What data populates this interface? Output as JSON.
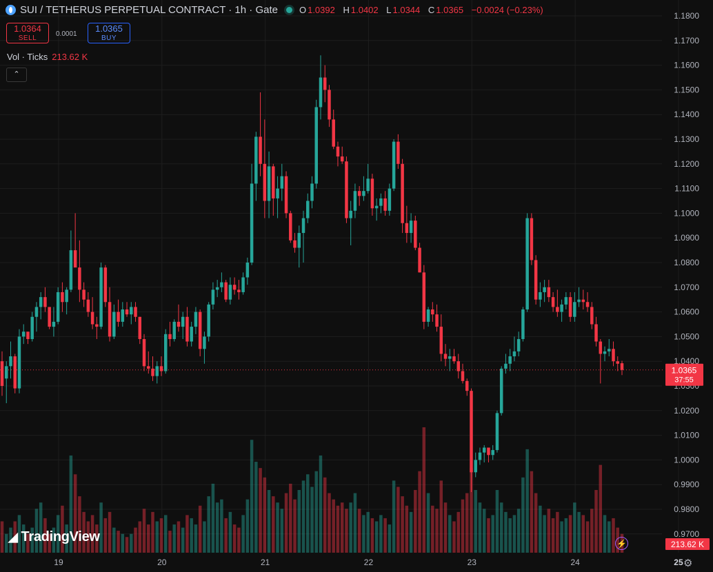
{
  "header": {
    "symbol_title": "SUI / TETHERUS PERPETUAL CONTRACT · 1h · Gate",
    "ohlc": {
      "o_key": "O",
      "o_val": "1.0392",
      "h_key": "H",
      "h_val": "1.0402",
      "l_key": "L",
      "l_val": "1.0344",
      "c_key": "C",
      "c_val": "1.0365",
      "change": "−0.0024 (−0.23%)"
    }
  },
  "trade": {
    "sell_price": "1.0364",
    "sell_label": "SELL",
    "spread": "0.0001",
    "buy_price": "1.0365",
    "buy_label": "BUY"
  },
  "volume_legend": {
    "label": "Vol · Ticks",
    "value": "213.62 K"
  },
  "price_tag": {
    "price": "1.0365",
    "countdown": "37:55"
  },
  "volume_tag": "213.62 K",
  "branding": {
    "logo_text": "TradingView"
  },
  "colors": {
    "up": "#26a69a",
    "down": "#f23645",
    "background": "#0f0f0f",
    "grid": "#1e1e1e"
  },
  "icons": {
    "collapse": "chevron-up-icon",
    "bolt": "lightning-icon",
    "settings": "gear-icon"
  },
  "chart_data": {
    "type": "candlestick",
    "interval": "1h",
    "y_ticks": [
      "1.1800",
      "1.1700",
      "1.1600",
      "1.1500",
      "1.1400",
      "1.1300",
      "1.1200",
      "1.1100",
      "1.1000",
      "1.0900",
      "1.0800",
      "1.0700",
      "1.0600",
      "1.0500",
      "1.0400",
      "1.0300",
      "1.0200",
      "1.0100",
      "1.0000",
      "0.9900",
      "0.9800",
      "0.9700"
    ],
    "ylim": [
      0.965,
      1.185
    ],
    "x_labels": [
      "19",
      "20",
      "21",
      "22",
      "23",
      "24",
      "25"
    ],
    "current_price": 1.0365,
    "candles": [
      {
        "o": 1.04,
        "h": 1.044,
        "l": 1.026,
        "c": 1.03,
        "v": 10
      },
      {
        "o": 1.033,
        "h": 1.04,
        "l": 1.023,
        "c": 1.038,
        "v": 6
      },
      {
        "o": 1.038,
        "h": 1.048,
        "l": 1.033,
        "c": 1.042,
        "v": 8
      },
      {
        "o": 1.042,
        "h": 1.043,
        "l": 1.027,
        "c": 1.029,
        "v": 10
      },
      {
        "o": 1.029,
        "h": 1.053,
        "l": 1.027,
        "c": 1.05,
        "v": 12
      },
      {
        "o": 1.05,
        "h": 1.055,
        "l": 1.047,
        "c": 1.052,
        "v": 9
      },
      {
        "o": 1.052,
        "h": 1.051,
        "l": 1.047,
        "c": 1.049,
        "v": 6
      },
      {
        "o": 1.049,
        "h": 1.06,
        "l": 1.048,
        "c": 1.058,
        "v": 8
      },
      {
        "o": 1.058,
        "h": 1.064,
        "l": 1.052,
        "c": 1.062,
        "v": 14
      },
      {
        "o": 1.062,
        "h": 1.068,
        "l": 1.057,
        "c": 1.066,
        "v": 16
      },
      {
        "o": 1.066,
        "h": 1.07,
        "l": 1.06,
        "c": 1.062,
        "v": 11
      },
      {
        "o": 1.062,
        "h": 1.061,
        "l": 1.053,
        "c": 1.054,
        "v": 6
      },
      {
        "o": 1.054,
        "h": 1.062,
        "l": 1.05,
        "c": 1.056,
        "v": 8
      },
      {
        "o": 1.056,
        "h": 1.07,
        "l": 1.055,
        "c": 1.068,
        "v": 12
      },
      {
        "o": 1.068,
        "h": 1.072,
        "l": 1.06,
        "c": 1.064,
        "v": 15
      },
      {
        "o": 1.064,
        "h": 1.07,
        "l": 1.059,
        "c": 1.069,
        "v": 9
      },
      {
        "o": 1.069,
        "h": 1.093,
        "l": 1.068,
        "c": 1.085,
        "v": 31
      },
      {
        "o": 1.085,
        "h": 1.1,
        "l": 1.08,
        "c": 1.078,
        "v": 25
      },
      {
        "o": 1.078,
        "h": 1.089,
        "l": 1.064,
        "c": 1.069,
        "v": 18
      },
      {
        "o": 1.069,
        "h": 1.072,
        "l": 1.062,
        "c": 1.065,
        "v": 13
      },
      {
        "o": 1.065,
        "h": 1.068,
        "l": 1.058,
        "c": 1.06,
        "v": 10
      },
      {
        "o": 1.06,
        "h": 1.066,
        "l": 1.053,
        "c": 1.055,
        "v": 12
      },
      {
        "o": 1.055,
        "h": 1.058,
        "l": 1.049,
        "c": 1.054,
        "v": 9
      },
      {
        "o": 1.054,
        "h": 1.08,
        "l": 1.053,
        "c": 1.078,
        "v": 16
      },
      {
        "o": 1.078,
        "h": 1.079,
        "l": 1.062,
        "c": 1.064,
        "v": 11
      },
      {
        "o": 1.064,
        "h": 1.07,
        "l": 1.048,
        "c": 1.05,
        "v": 13
      },
      {
        "o": 1.05,
        "h": 1.063,
        "l": 1.049,
        "c": 1.06,
        "v": 8
      },
      {
        "o": 1.06,
        "h": 1.065,
        "l": 1.054,
        "c": 1.056,
        "v": 7
      },
      {
        "o": 1.056,
        "h": 1.064,
        "l": 1.054,
        "c": 1.061,
        "v": 6
      },
      {
        "o": 1.061,
        "h": 1.064,
        "l": 1.058,
        "c": 1.059,
        "v": 5
      },
      {
        "o": 1.059,
        "h": 1.064,
        "l": 1.055,
        "c": 1.062,
        "v": 6
      },
      {
        "o": 1.062,
        "h": 1.064,
        "l": 1.056,
        "c": 1.058,
        "v": 8
      },
      {
        "o": 1.058,
        "h": 1.058,
        "l": 1.047,
        "c": 1.049,
        "v": 10
      },
      {
        "o": 1.049,
        "h": 1.051,
        "l": 1.036,
        "c": 1.038,
        "v": 14
      },
      {
        "o": 1.038,
        "h": 1.044,
        "l": 1.035,
        "c": 1.037,
        "v": 9
      },
      {
        "o": 1.037,
        "h": 1.042,
        "l": 1.032,
        "c": 1.034,
        "v": 13
      },
      {
        "o": 1.034,
        "h": 1.04,
        "l": 1.031,
        "c": 1.038,
        "v": 10
      },
      {
        "o": 1.038,
        "h": 1.042,
        "l": 1.034,
        "c": 1.036,
        "v": 11
      },
      {
        "o": 1.036,
        "h": 1.053,
        "l": 1.035,
        "c": 1.051,
        "v": 12
      },
      {
        "o": 1.051,
        "h": 1.056,
        "l": 1.046,
        "c": 1.049,
        "v": 7
      },
      {
        "o": 1.049,
        "h": 1.057,
        "l": 1.048,
        "c": 1.056,
        "v": 9
      },
      {
        "o": 1.056,
        "h": 1.063,
        "l": 1.052,
        "c": 1.054,
        "v": 10
      },
      {
        "o": 1.054,
        "h": 1.06,
        "l": 1.049,
        "c": 1.058,
        "v": 8
      },
      {
        "o": 1.058,
        "h": 1.062,
        "l": 1.046,
        "c": 1.048,
        "v": 12
      },
      {
        "o": 1.048,
        "h": 1.056,
        "l": 1.046,
        "c": 1.054,
        "v": 11
      },
      {
        "o": 1.054,
        "h": 1.062,
        "l": 1.051,
        "c": 1.06,
        "v": 9
      },
      {
        "o": 1.06,
        "h": 1.061,
        "l": 1.042,
        "c": 1.045,
        "v": 15
      },
      {
        "o": 1.045,
        "h": 1.052,
        "l": 1.039,
        "c": 1.05,
        "v": 10
      },
      {
        "o": 1.05,
        "h": 1.064,
        "l": 1.048,
        "c": 1.063,
        "v": 18
      },
      {
        "o": 1.063,
        "h": 1.072,
        "l": 1.061,
        "c": 1.069,
        "v": 22
      },
      {
        "o": 1.069,
        "h": 1.073,
        "l": 1.066,
        "c": 1.07,
        "v": 16
      },
      {
        "o": 1.07,
        "h": 1.076,
        "l": 1.068,
        "c": 1.072,
        "v": 17
      },
      {
        "o": 1.072,
        "h": 1.073,
        "l": 1.064,
        "c": 1.065,
        "v": 11
      },
      {
        "o": 1.065,
        "h": 1.074,
        "l": 1.063,
        "c": 1.071,
        "v": 13
      },
      {
        "o": 1.071,
        "h": 1.074,
        "l": 1.067,
        "c": 1.069,
        "v": 9
      },
      {
        "o": 1.069,
        "h": 1.073,
        "l": 1.065,
        "c": 1.068,
        "v": 8
      },
      {
        "o": 1.068,
        "h": 1.076,
        "l": 1.067,
        "c": 1.074,
        "v": 12
      },
      {
        "o": 1.074,
        "h": 1.082,
        "l": 1.071,
        "c": 1.08,
        "v": 17
      },
      {
        "o": 1.08,
        "h": 1.12,
        "l": 1.079,
        "c": 1.112,
        "v": 36
      },
      {
        "o": 1.112,
        "h": 1.133,
        "l": 1.105,
        "c": 1.131,
        "v": 29
      },
      {
        "o": 1.131,
        "h": 1.149,
        "l": 1.115,
        "c": 1.12,
        "v": 27
      },
      {
        "o": 1.12,
        "h": 1.138,
        "l": 1.098,
        "c": 1.105,
        "v": 24
      },
      {
        "o": 1.105,
        "h": 1.125,
        "l": 1.098,
        "c": 1.119,
        "v": 20
      },
      {
        "o": 1.119,
        "h": 1.12,
        "l": 1.099,
        "c": 1.106,
        "v": 18
      },
      {
        "o": 1.106,
        "h": 1.115,
        "l": 1.098,
        "c": 1.11,
        "v": 16
      },
      {
        "o": 1.11,
        "h": 1.12,
        "l": 1.105,
        "c": 1.115,
        "v": 14
      },
      {
        "o": 1.115,
        "h": 1.117,
        "l": 1.098,
        "c": 1.1,
        "v": 19
      },
      {
        "o": 1.1,
        "h": 1.101,
        "l": 1.088,
        "c": 1.089,
        "v": 22
      },
      {
        "o": 1.089,
        "h": 1.092,
        "l": 1.084,
        "c": 1.086,
        "v": 17
      },
      {
        "o": 1.086,
        "h": 1.095,
        "l": 1.078,
        "c": 1.092,
        "v": 20
      },
      {
        "o": 1.092,
        "h": 1.101,
        "l": 1.08,
        "c": 1.098,
        "v": 23
      },
      {
        "o": 1.098,
        "h": 1.108,
        "l": 1.096,
        "c": 1.105,
        "v": 25
      },
      {
        "o": 1.105,
        "h": 1.115,
        "l": 1.102,
        "c": 1.112,
        "v": 21
      },
      {
        "o": 1.112,
        "h": 1.146,
        "l": 1.11,
        "c": 1.143,
        "v": 26
      },
      {
        "o": 1.143,
        "h": 1.164,
        "l": 1.138,
        "c": 1.155,
        "v": 31
      },
      {
        "o": 1.155,
        "h": 1.16,
        "l": 1.145,
        "c": 1.15,
        "v": 24
      },
      {
        "o": 1.15,
        "h": 1.152,
        "l": 1.135,
        "c": 1.138,
        "v": 19
      },
      {
        "o": 1.138,
        "h": 1.142,
        "l": 1.126,
        "c": 1.127,
        "v": 17
      },
      {
        "o": 1.127,
        "h": 1.129,
        "l": 1.119,
        "c": 1.123,
        "v": 15
      },
      {
        "o": 1.123,
        "h": 1.127,
        "l": 1.12,
        "c": 1.121,
        "v": 16
      },
      {
        "o": 1.121,
        "h": 1.123,
        "l": 1.096,
        "c": 1.098,
        "v": 14
      },
      {
        "o": 1.098,
        "h": 1.105,
        "l": 1.087,
        "c": 1.101,
        "v": 16
      },
      {
        "o": 1.101,
        "h": 1.112,
        "l": 1.098,
        "c": 1.109,
        "v": 19
      },
      {
        "o": 1.109,
        "h": 1.111,
        "l": 1.103,
        "c": 1.107,
        "v": 14
      },
      {
        "o": 1.107,
        "h": 1.115,
        "l": 1.105,
        "c": 1.109,
        "v": 12
      },
      {
        "o": 1.109,
        "h": 1.12,
        "l": 1.108,
        "c": 1.114,
        "v": 13
      },
      {
        "o": 1.114,
        "h": 1.116,
        "l": 1.099,
        "c": 1.102,
        "v": 11
      },
      {
        "o": 1.102,
        "h": 1.106,
        "l": 1.097,
        "c": 1.103,
        "v": 10
      },
      {
        "o": 1.103,
        "h": 1.108,
        "l": 1.1,
        "c": 1.106,
        "v": 12
      },
      {
        "o": 1.106,
        "h": 1.109,
        "l": 1.099,
        "c": 1.101,
        "v": 11
      },
      {
        "o": 1.101,
        "h": 1.112,
        "l": 1.099,
        "c": 1.11,
        "v": 9
      },
      {
        "o": 1.11,
        "h": 1.13,
        "l": 1.109,
        "c": 1.129,
        "v": 23
      },
      {
        "o": 1.129,
        "h": 1.132,
        "l": 1.118,
        "c": 1.12,
        "v": 21
      },
      {
        "o": 1.12,
        "h": 1.122,
        "l": 1.092,
        "c": 1.096,
        "v": 18
      },
      {
        "o": 1.096,
        "h": 1.103,
        "l": 1.088,
        "c": 1.092,
        "v": 15
      },
      {
        "o": 1.092,
        "h": 1.1,
        "l": 1.088,
        "c": 1.097,
        "v": 13
      },
      {
        "o": 1.097,
        "h": 1.099,
        "l": 1.085,
        "c": 1.086,
        "v": 20
      },
      {
        "o": 1.086,
        "h": 1.088,
        "l": 1.076,
        "c": 1.076,
        "v": 26
      },
      {
        "o": 1.076,
        "h": 1.079,
        "l": 1.053,
        "c": 1.056,
        "v": 40
      },
      {
        "o": 1.056,
        "h": 1.062,
        "l": 1.054,
        "c": 1.061,
        "v": 19
      },
      {
        "o": 1.061,
        "h": 1.064,
        "l": 1.056,
        "c": 1.059,
        "v": 15
      },
      {
        "o": 1.059,
        "h": 1.063,
        "l": 1.052,
        "c": 1.054,
        "v": 14
      },
      {
        "o": 1.054,
        "h": 1.059,
        "l": 1.04,
        "c": 1.043,
        "v": 23
      },
      {
        "o": 1.043,
        "h": 1.047,
        "l": 1.038,
        "c": 1.041,
        "v": 16
      },
      {
        "o": 1.041,
        "h": 1.045,
        "l": 1.036,
        "c": 1.042,
        "v": 12
      },
      {
        "o": 1.042,
        "h": 1.045,
        "l": 1.039,
        "c": 1.04,
        "v": 10
      },
      {
        "o": 1.04,
        "h": 1.043,
        "l": 1.033,
        "c": 1.036,
        "v": 13
      },
      {
        "o": 1.036,
        "h": 1.039,
        "l": 1.031,
        "c": 1.032,
        "v": 17
      },
      {
        "o": 1.032,
        "h": 1.033,
        "l": 1.026,
        "c": 1.028,
        "v": 19
      },
      {
        "o": 1.028,
        "h": 1.029,
        "l": 0.987,
        "c": 0.995,
        "v": 27
      },
      {
        "o": 0.995,
        "h": 1.003,
        "l": 0.993,
        "c": 1.0,
        "v": 20
      },
      {
        "o": 1.0,
        "h": 1.005,
        "l": 0.998,
        "c": 1.003,
        "v": 16
      },
      {
        "o": 1.003,
        "h": 1.006,
        "l": 0.999,
        "c": 1.005,
        "v": 14
      },
      {
        "o": 1.005,
        "h": 1.004,
        "l": 0.999,
        "c": 1.002,
        "v": 11
      },
      {
        "o": 1.002,
        "h": 1.006,
        "l": 1.0,
        "c": 1.004,
        "v": 12
      },
      {
        "o": 1.004,
        "h": 1.02,
        "l": 1.003,
        "c": 1.019,
        "v": 20
      },
      {
        "o": 1.019,
        "h": 1.038,
        "l": 1.018,
        "c": 1.037,
        "v": 16
      },
      {
        "o": 1.037,
        "h": 1.043,
        "l": 1.035,
        "c": 1.039,
        "v": 13
      },
      {
        "o": 1.039,
        "h": 1.045,
        "l": 1.036,
        "c": 1.042,
        "v": 11
      },
      {
        "o": 1.042,
        "h": 1.05,
        "l": 1.04,
        "c": 1.044,
        "v": 12
      },
      {
        "o": 1.044,
        "h": 1.052,
        "l": 1.042,
        "c": 1.049,
        "v": 14
      },
      {
        "o": 1.049,
        "h": 1.062,
        "l": 1.048,
        "c": 1.061,
        "v": 24
      },
      {
        "o": 1.061,
        "h": 1.1,
        "l": 1.06,
        "c": 1.098,
        "v": 33
      },
      {
        "o": 1.098,
        "h": 1.1,
        "l": 1.079,
        "c": 1.081,
        "v": 26
      },
      {
        "o": 1.081,
        "h": 1.083,
        "l": 1.063,
        "c": 1.065,
        "v": 19
      },
      {
        "o": 1.065,
        "h": 1.072,
        "l": 1.062,
        "c": 1.068,
        "v": 15
      },
      {
        "o": 1.068,
        "h": 1.073,
        "l": 1.064,
        "c": 1.07,
        "v": 12
      },
      {
        "o": 1.07,
        "h": 1.073,
        "l": 1.064,
        "c": 1.066,
        "v": 14
      },
      {
        "o": 1.066,
        "h": 1.068,
        "l": 1.06,
        "c": 1.062,
        "v": 11
      },
      {
        "o": 1.062,
        "h": 1.069,
        "l": 1.058,
        "c": 1.06,
        "v": 13
      },
      {
        "o": 1.06,
        "h": 1.065,
        "l": 1.056,
        "c": 1.063,
        "v": 10
      },
      {
        "o": 1.063,
        "h": 1.068,
        "l": 1.061,
        "c": 1.066,
        "v": 11
      },
      {
        "o": 1.066,
        "h": 1.068,
        "l": 1.056,
        "c": 1.058,
        "v": 12
      },
      {
        "o": 1.058,
        "h": 1.068,
        "l": 1.056,
        "c": 1.064,
        "v": 16
      },
      {
        "o": 1.064,
        "h": 1.07,
        "l": 1.062,
        "c": 1.065,
        "v": 13
      },
      {
        "o": 1.065,
        "h": 1.069,
        "l": 1.061,
        "c": 1.064,
        "v": 12
      },
      {
        "o": 1.064,
        "h": 1.068,
        "l": 1.06,
        "c": 1.062,
        "v": 10
      },
      {
        "o": 1.062,
        "h": 1.064,
        "l": 1.053,
        "c": 1.055,
        "v": 14
      },
      {
        "o": 1.055,
        "h": 1.058,
        "l": 1.046,
        "c": 1.048,
        "v": 20
      },
      {
        "o": 1.048,
        "h": 1.049,
        "l": 1.031,
        "c": 1.043,
        "v": 28
      },
      {
        "o": 1.043,
        "h": 1.046,
        "l": 1.04,
        "c": 1.044,
        "v": 12
      },
      {
        "o": 1.044,
        "h": 1.049,
        "l": 1.042,
        "c": 1.045,
        "v": 10
      },
      {
        "o": 1.045,
        "h": 1.048,
        "l": 1.038,
        "c": 1.04,
        "v": 11
      },
      {
        "o": 1.04,
        "h": 1.042,
        "l": 1.036,
        "c": 1.039,
        "v": 8
      },
      {
        "o": 1.0392,
        "h": 1.0402,
        "l": 1.0344,
        "c": 1.0365,
        "v": 6
      }
    ]
  }
}
